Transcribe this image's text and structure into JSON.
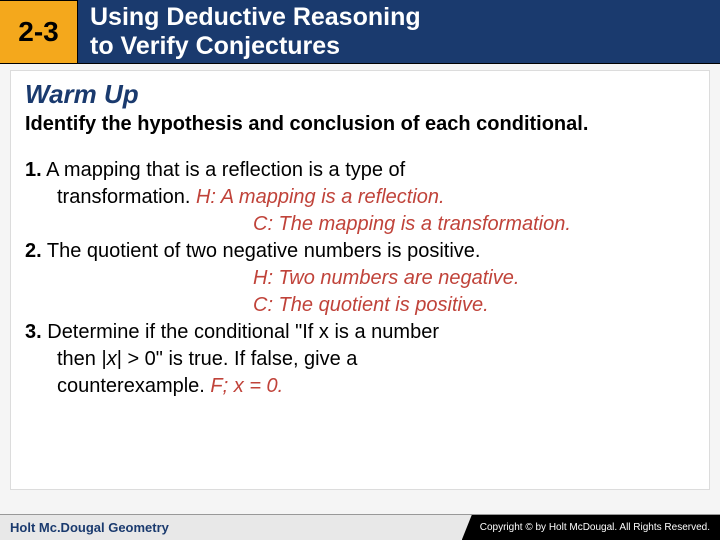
{
  "header": {
    "section_number": "2-3",
    "title_line1": "Using Deductive Reasoning",
    "title_line2": "to Verify Conjectures"
  },
  "content": {
    "warmup_heading": "Warm Up",
    "instructions": "Identify the hypothesis and conclusion of each conditional.",
    "problems": {
      "p1": {
        "num": "1.",
        "text_a": " A mapping that is a reflection is a type of",
        "text_b": "transformation.",
        "ans_h": " H: A mapping is a reflection.",
        "ans_c": "C: The mapping is a transformation."
      },
      "p2": {
        "num": "2.",
        "text": " The quotient of two negative numbers is positive.",
        "ans_h": "H: Two numbers are negative.",
        "ans_c": "C: The quotient is positive."
      },
      "p3": {
        "num": "3.",
        "text_a": " Determine if the conditional \"If x is a number",
        "text_b": "then |",
        "text_b_var": "x",
        "text_b_rest": "| > 0\" is true. If false, give a",
        "text_c": "counterexample.",
        "ans": " F; ",
        "ans_var": "x",
        "ans_rest": " = 0."
      }
    }
  },
  "footer": {
    "left": "Holt Mc.Dougal Geometry",
    "right": "Copyright © by Holt McDougal. All Rights Reserved."
  },
  "colors": {
    "header_bg": "#1a3a6e",
    "accent_bg": "#f4a81c",
    "answer_color": "#c0433a"
  }
}
